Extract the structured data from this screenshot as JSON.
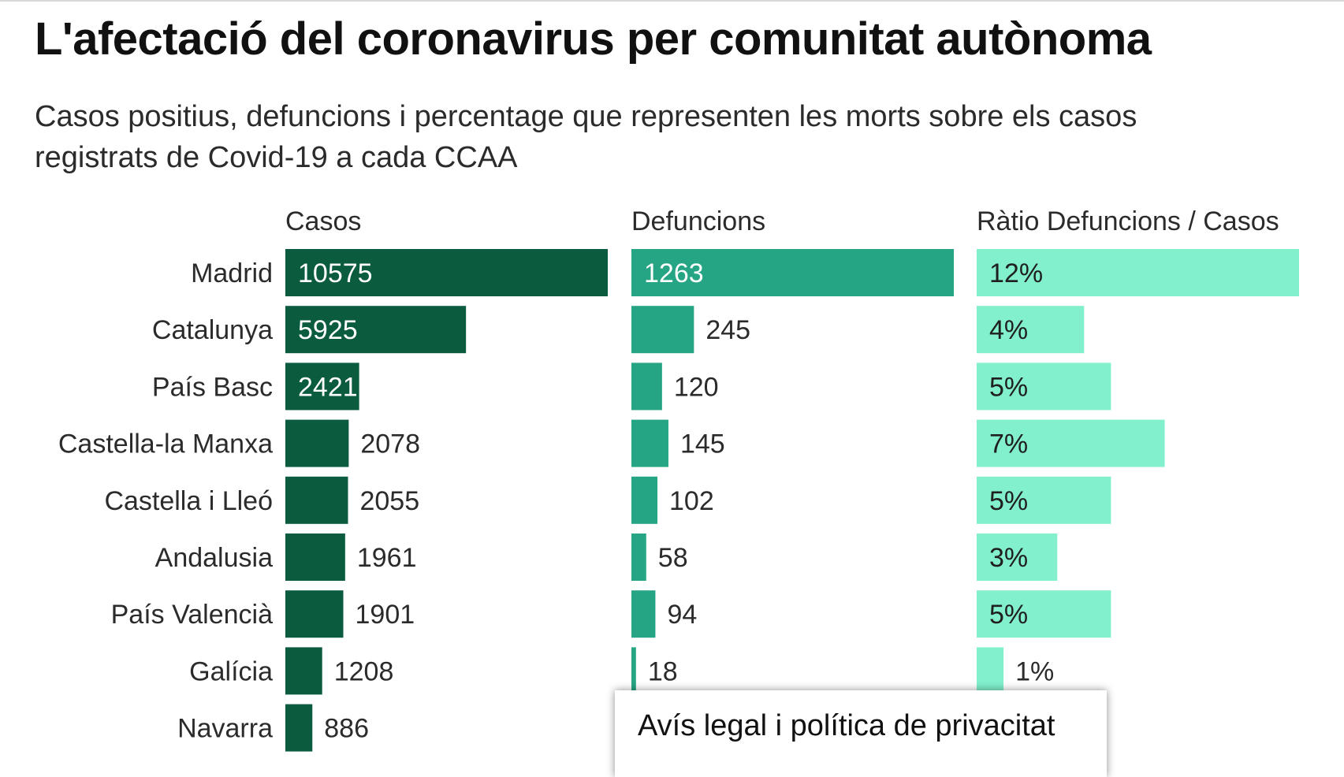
{
  "title": "L'afectació del coronavirus per comunitat autònoma",
  "subtitle": "Casos positius, defuncions i percentage que representen les morts sobre els casos registrats de Covid-19 a cada CCAA",
  "legal_notice": "Avís legal i política de privacitat",
  "chart_data": {
    "type": "bar",
    "categories": [
      "Madrid",
      "Catalunya",
      "País Basc",
      "Castella-la Manxa",
      "Castella i Lleó",
      "Andalusia",
      "País Valencià",
      "Galícia",
      "Navarra"
    ],
    "series": [
      {
        "name": "Casos",
        "values": [
          10575,
          5925,
          2421,
          2078,
          2055,
          1961,
          1901,
          1208,
          886
        ],
        "color": "#0b5b3f",
        "labels": [
          "10575",
          "5925",
          "2421",
          "2078",
          "2055",
          "1961",
          "1901",
          "1208",
          "886"
        ]
      },
      {
        "name": "Defuncions",
        "values": [
          1263,
          245,
          120,
          145,
          102,
          58,
          94,
          18,
          null
        ],
        "color": "#26a585",
        "labels": [
          "1263",
          "245",
          "120",
          "145",
          "102",
          "58",
          "94",
          "18",
          ""
        ]
      },
      {
        "name": "Ràtio Defuncions / Casos",
        "values": [
          12,
          4,
          5,
          7,
          5,
          3,
          5,
          1,
          null
        ],
        "color": "#82f0cc",
        "labels": [
          "12%",
          "4%",
          "5%",
          "7%",
          "5%",
          "3%",
          "5%",
          "1%",
          ""
        ]
      }
    ]
  }
}
